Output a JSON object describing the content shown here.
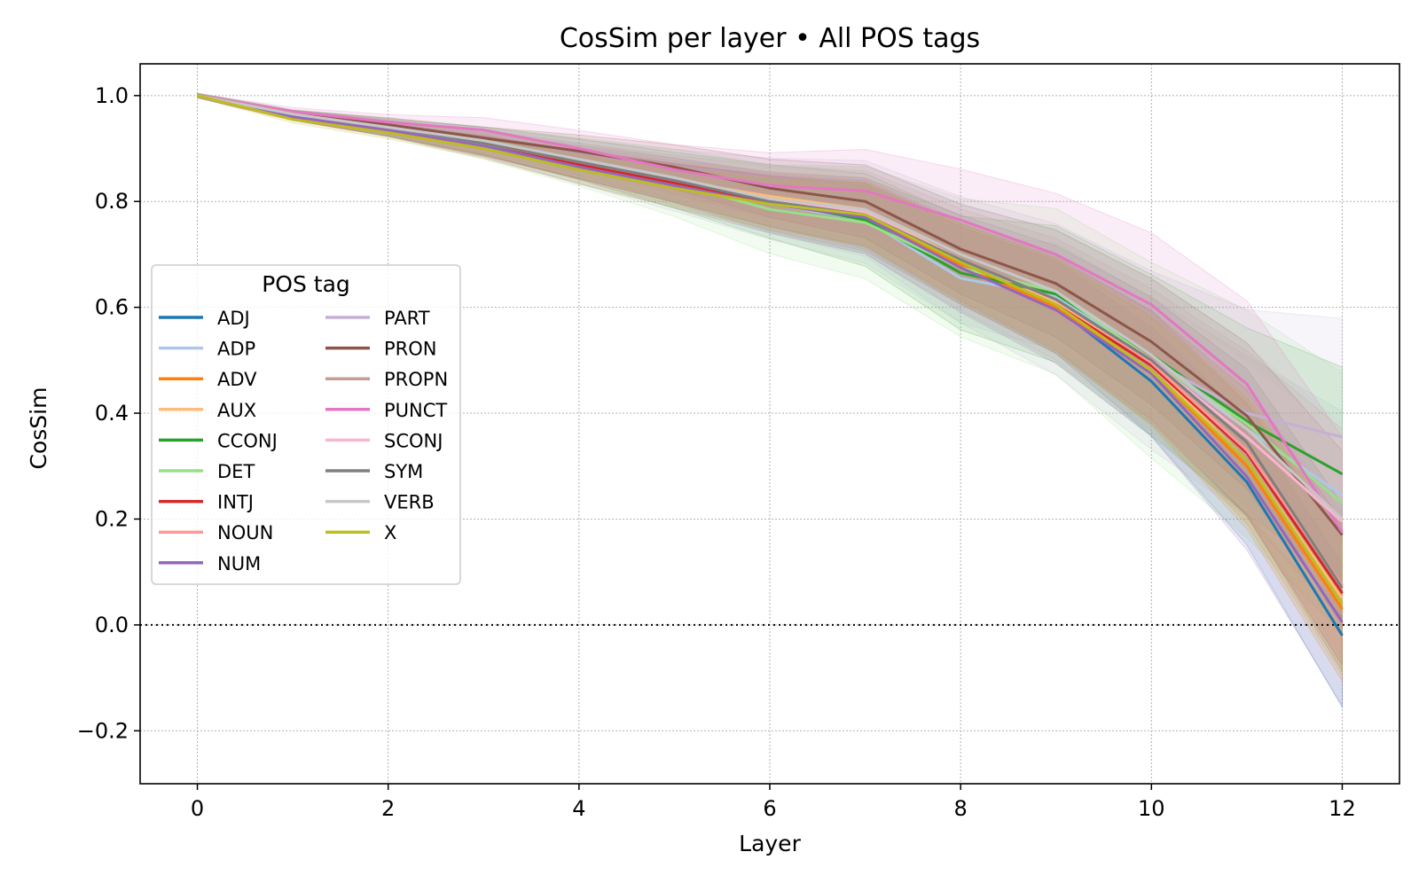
{
  "chart_data": {
    "type": "line",
    "title": "CosSim per layer • All POS tags",
    "xlabel": "Layer",
    "ylabel": "CosSim",
    "xlim": [
      -0.6,
      12.6
    ],
    "ylim": [
      -0.3,
      1.06
    ],
    "xticks": [
      0,
      2,
      4,
      6,
      8,
      10,
      12
    ],
    "yticks": [
      -0.2,
      0.0,
      0.2,
      0.4,
      0.6,
      0.8,
      1.0
    ],
    "xtick_labels": [
      "0",
      "2",
      "4",
      "6",
      "8",
      "10",
      "12"
    ],
    "ytick_labels": [
      "−0.2",
      "0.0",
      "0.2",
      "0.4",
      "0.6",
      "0.8",
      "1.0"
    ],
    "grid": true,
    "reference_line": 0.0,
    "legend": {
      "title": "POS tag",
      "placement": "center-left",
      "columns": 2
    },
    "x": [
      0,
      1,
      2,
      3,
      4,
      5,
      6,
      7,
      8,
      9,
      10,
      11,
      12
    ],
    "series": [
      {
        "name": "ADJ",
        "color": "#1f77b4",
        "values": [
          1.0,
          0.96,
          0.935,
          0.905,
          0.87,
          0.835,
          0.8,
          0.77,
          0.68,
          0.6,
          0.46,
          0.27,
          -0.02
        ],
        "band": 0.06
      },
      {
        "name": "ADP",
        "color": "#aec7e8",
        "values": [
          1.0,
          0.965,
          0.94,
          0.915,
          0.88,
          0.84,
          0.795,
          0.765,
          0.655,
          0.62,
          0.5,
          0.37,
          0.245
        ],
        "band": 0.07
      },
      {
        "name": "ADV",
        "color": "#ff7f0e",
        "values": [
          1.0,
          0.96,
          0.935,
          0.905,
          0.87,
          0.835,
          0.8,
          0.775,
          0.68,
          0.6,
          0.48,
          0.3,
          0.03
        ],
        "band": 0.06
      },
      {
        "name": "AUX",
        "color": "#ffbb78",
        "values": [
          1.0,
          0.965,
          0.94,
          0.91,
          0.875,
          0.84,
          0.81,
          0.785,
          0.69,
          0.61,
          0.49,
          0.31,
          0.05
        ],
        "band": 0.06
      },
      {
        "name": "CCONJ",
        "color": "#2ca02c",
        "values": [
          1.0,
          0.965,
          0.94,
          0.915,
          0.88,
          0.84,
          0.8,
          0.765,
          0.665,
          0.625,
          0.51,
          0.385,
          0.285
        ],
        "band": 0.09
      },
      {
        "name": "DET",
        "color": "#98df8a",
        "values": [
          1.0,
          0.965,
          0.94,
          0.91,
          0.875,
          0.835,
          0.785,
          0.76,
          0.675,
          0.63,
          0.5,
          0.38,
          0.23
        ],
        "band": 0.11
      },
      {
        "name": "INTJ",
        "color": "#d62728",
        "values": [
          1.0,
          0.96,
          0.935,
          0.905,
          0.87,
          0.835,
          0.8,
          0.775,
          0.685,
          0.605,
          0.49,
          0.325,
          0.06
        ],
        "band": 0.06
      },
      {
        "name": "NOUN",
        "color": "#ff9896",
        "values": [
          1.0,
          0.965,
          0.94,
          0.91,
          0.875,
          0.84,
          0.805,
          0.78,
          0.69,
          0.615,
          0.495,
          0.33,
          0.075
        ],
        "band": 0.06
      },
      {
        "name": "NUM",
        "color": "#9467bd",
        "values": [
          1.0,
          0.96,
          0.935,
          0.905,
          0.865,
          0.83,
          0.795,
          0.77,
          0.675,
          0.595,
          0.475,
          0.28,
          0.005
        ],
        "band": 0.07
      },
      {
        "name": "PART",
        "color": "#c5b0d5",
        "values": [
          1.0,
          0.965,
          0.94,
          0.91,
          0.875,
          0.84,
          0.805,
          0.78,
          0.69,
          0.615,
          0.5,
          0.4,
          0.355
        ],
        "band": 0.1
      },
      {
        "name": "PRON",
        "color": "#8c564b",
        "values": [
          1.0,
          0.965,
          0.945,
          0.92,
          0.895,
          0.865,
          0.825,
          0.8,
          0.71,
          0.645,
          0.535,
          0.395,
          0.17
        ],
        "band": 0.07
      },
      {
        "name": "PROPN",
        "color": "#c49c94",
        "values": [
          1.0,
          0.965,
          0.94,
          0.91,
          0.875,
          0.84,
          0.805,
          0.78,
          0.69,
          0.615,
          0.5,
          0.36,
          0.19
        ],
        "band": 0.08
      },
      {
        "name": "PUNCT",
        "color": "#e377c2",
        "values": [
          1.0,
          0.97,
          0.95,
          0.935,
          0.9,
          0.86,
          0.83,
          0.82,
          0.765,
          0.7,
          0.605,
          0.455,
          0.175
        ],
        "band": 0.08
      },
      {
        "name": "SCONJ",
        "color": "#f7b6d2",
        "values": [
          1.0,
          0.965,
          0.94,
          0.91,
          0.875,
          0.84,
          0.805,
          0.78,
          0.69,
          0.615,
          0.5,
          0.355,
          0.195
        ],
        "band": 0.07
      },
      {
        "name": "SYM",
        "color": "#7f7f7f",
        "values": [
          1.0,
          0.965,
          0.94,
          0.91,
          0.875,
          0.84,
          0.8,
          0.775,
          0.69,
          0.615,
          0.5,
          0.345,
          0.07
        ],
        "band": 0.07
      },
      {
        "name": "VERB",
        "color": "#c7c7c7",
        "values": [
          1.0,
          0.965,
          0.94,
          0.915,
          0.88,
          0.845,
          0.805,
          0.785,
          0.7,
          0.63,
          0.51,
          0.37,
          0.2
        ],
        "band": 0.08
      },
      {
        "name": "X",
        "color": "#bcbd22",
        "values": [
          1.0,
          0.955,
          0.93,
          0.9,
          0.86,
          0.825,
          0.795,
          0.775,
          0.685,
          0.605,
          0.48,
          0.31,
          0.04
        ],
        "band": 0.06
      }
    ]
  }
}
